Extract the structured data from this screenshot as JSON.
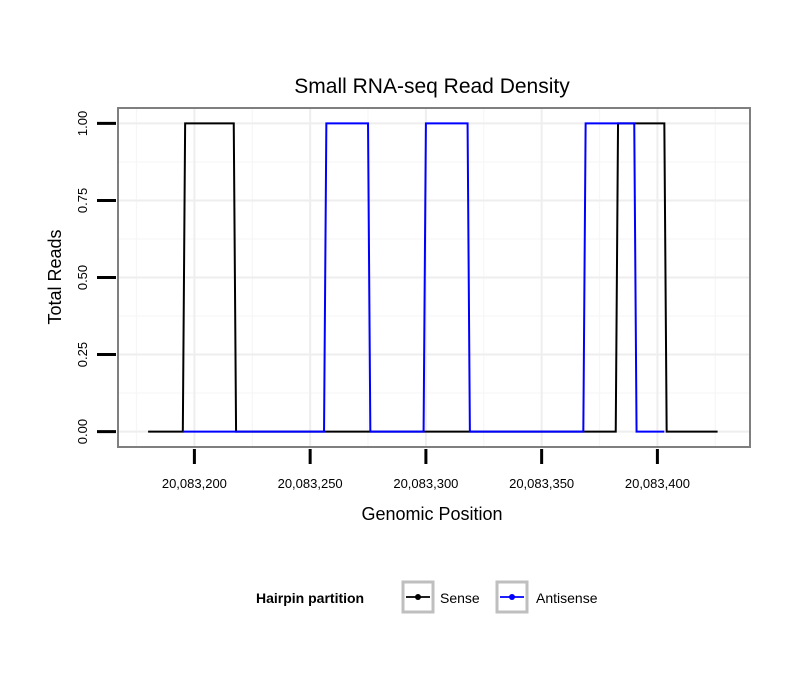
{
  "chart_data": {
    "type": "line",
    "title": "Small RNA-seq Read Density",
    "xlabel": "Genomic Position",
    "ylabel": "Total Reads",
    "xlim": [
      20083167,
      20083440
    ],
    "ylim": [
      -0.05,
      1.05
    ],
    "x_ticks": [
      20083200,
      20083250,
      20083300,
      20083350,
      20083400
    ],
    "x_tick_labels": [
      "20,083,200",
      "20,083,250",
      "20,083,300",
      "20,083,350",
      "20,083,400"
    ],
    "y_ticks": [
      0,
      0.25,
      0.5,
      0.75,
      1
    ],
    "y_tick_labels": [
      "0.00",
      "0.25",
      "0.50",
      "0.75",
      "1.00"
    ],
    "grid": true,
    "legend": {
      "title": "Hairpin partition",
      "position": "bottom",
      "entries": [
        {
          "label": "Sense",
          "color": "#000000"
        },
        {
          "label": "Antisense",
          "color": "#0000ff"
        }
      ]
    },
    "series": [
      {
        "name": "Sense",
        "color": "#000000",
        "x": [
          20083180,
          20083195,
          20083196,
          20083217,
          20083218,
          20083382,
          20083383,
          20083403,
          20083404,
          20083426
        ],
        "y": [
          0,
          0,
          1,
          1,
          0,
          0,
          1,
          1,
          0,
          0
        ]
      },
      {
        "name": "Antisense",
        "color": "#0000ff",
        "x": [
          20083195,
          20083218,
          20083256,
          20083257,
          20083275,
          20083276,
          20083299,
          20083300,
          20083318,
          20083319,
          20083368,
          20083369,
          20083383,
          20083390,
          20083391,
          20083403
        ],
        "y": [
          0,
          0,
          0,
          1,
          1,
          0,
          0,
          1,
          1,
          0,
          0,
          1,
          1,
          1,
          0,
          0
        ]
      }
    ]
  }
}
